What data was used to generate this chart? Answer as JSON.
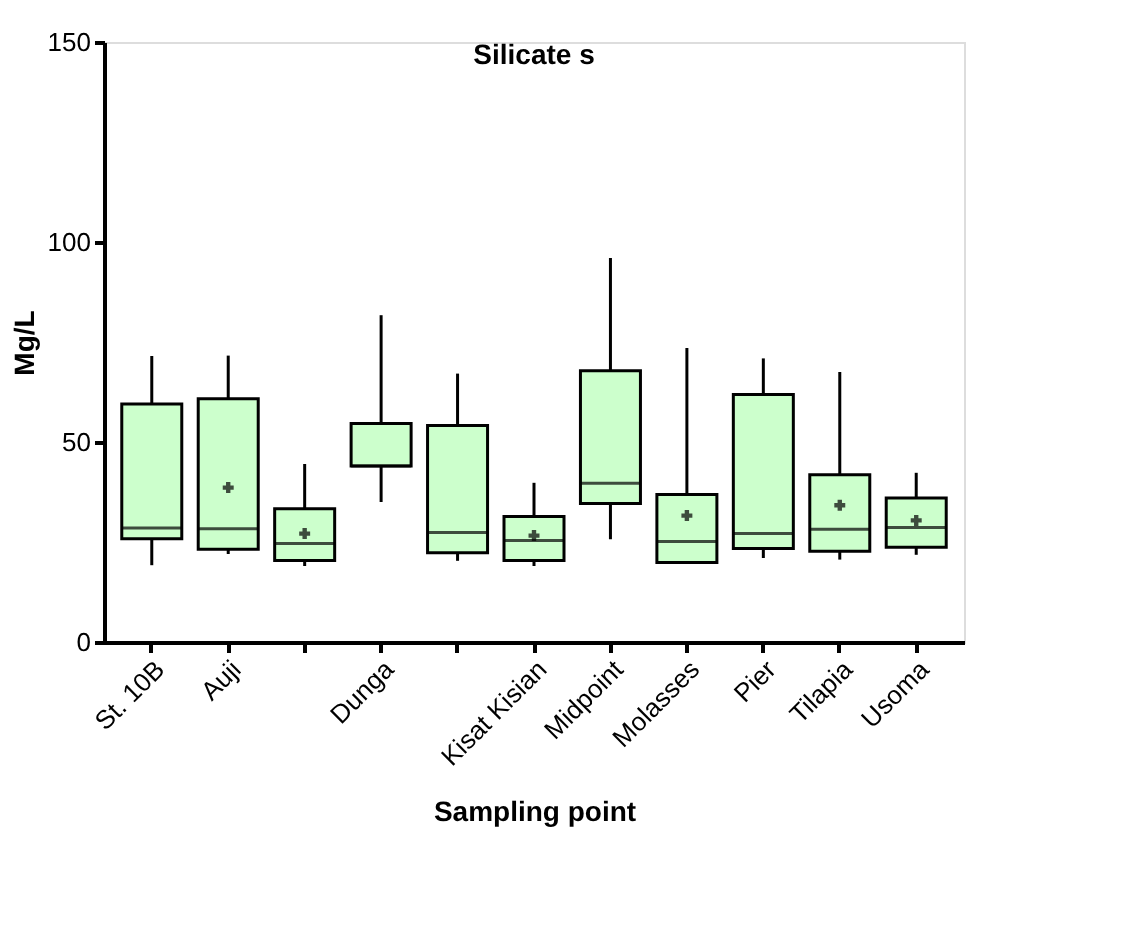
{
  "chart_data": {
    "type": "box",
    "title": "Silicate s",
    "xlabel": "Sampling point",
    "ylabel": "Mg/L",
    "categories": [
      "St. 10B",
      "Auji",
      null,
      "Dunga",
      null,
      "Kisat Kisian",
      "Midpoint",
      "Molasses",
      "Pier",
      "Tilapia",
      "Usoma"
    ],
    "color": "#ccffcc",
    "ylim": [
      0,
      150
    ],
    "yticks": [
      0,
      50,
      100,
      150
    ],
    "grid": false,
    "boxes": [
      {
        "low": 19.2,
        "q1": 25.8,
        "median": 28.5,
        "q3": 59.5,
        "high": 71.5
      },
      {
        "low": 22,
        "q1": 23.2,
        "median": 28.3,
        "q3": 60.8,
        "high": 71.6,
        "mean": 38.6
      },
      {
        "low": 19,
        "q1": 20.4,
        "median": 24.6,
        "q3": 33.3,
        "high": 44.5,
        "mean": 27.1
      },
      {
        "low": 35,
        "q1": 44,
        "median": 44,
        "q3": 54.6,
        "high": 81.7
      },
      {
        "low": 20.3,
        "q1": 22.3,
        "median": 27.4,
        "q3": 54.1,
        "high": 67.1
      },
      {
        "low": 19,
        "q1": 20.4,
        "median": 25.4,
        "q3": 31.4,
        "high": 39.8,
        "mean": 26.6
      },
      {
        "low": 25.7,
        "q1": 34.6,
        "median": 39.7,
        "q3": 67.8,
        "high": 96
      },
      {
        "low": 19.7,
        "q1": 19.9,
        "median": 25.1,
        "q3": 36.9,
        "high": 73.5,
        "mean": 31.6
      },
      {
        "low": 21,
        "q1": 23.4,
        "median": 27.1,
        "q3": 61.9,
        "high": 70.9
      },
      {
        "low": 20.6,
        "q1": 22.7,
        "median": 28.2,
        "q3": 41.8,
        "high": 67.5,
        "mean": 34.2
      },
      {
        "low": 21.8,
        "q1": 23.7,
        "median": 28.6,
        "q3": 36,
        "high": 42.3,
        "mean": 30.4
      }
    ]
  }
}
